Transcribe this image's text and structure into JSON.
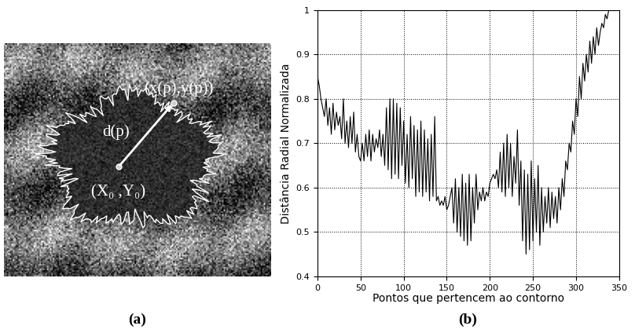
{
  "chart_data": [
    {
      "type": "image",
      "caption": "(a)",
      "annotations": [
        "d(p)",
        "(x(p),y(p))",
        "(X₀ ,Y₀)"
      ]
    },
    {
      "type": "line",
      "caption": "(b)",
      "x_label": "Pontos que pertencem ao contorno",
      "y_label": "Distância Radial Normalizada",
      "x": [
        0,
        2,
        4,
        6,
        8,
        10,
        12,
        14,
        16,
        18,
        20,
        22,
        24,
        26,
        28,
        30,
        32,
        34,
        36,
        38,
        40,
        42,
        44,
        46,
        48,
        50,
        52,
        54,
        56,
        58,
        60,
        62,
        64,
        66,
        68,
        70,
        72,
        74,
        76,
        78,
        80,
        82,
        84,
        86,
        88,
        90,
        92,
        94,
        96,
        98,
        100,
        102,
        104,
        106,
        108,
        110,
        112,
        114,
        116,
        118,
        120,
        122,
        124,
        126,
        128,
        130,
        132,
        134,
        136,
        138,
        140,
        142,
        144,
        146,
        148,
        150,
        152,
        154,
        156,
        158,
        160,
        162,
        164,
        166,
        168,
        170,
        172,
        174,
        176,
        178,
        180,
        182,
        184,
        186,
        188,
        190,
        192,
        194,
        196,
        198,
        200,
        202,
        204,
        206,
        208,
        210,
        212,
        214,
        216,
        218,
        220,
        222,
        224,
        226,
        228,
        230,
        232,
        234,
        236,
        238,
        240,
        242,
        244,
        246,
        248,
        250,
        252,
        254,
        256,
        258,
        260,
        262,
        264,
        266,
        268,
        270,
        272,
        274,
        276,
        278,
        280,
        282,
        284,
        286,
        288,
        290,
        292,
        294,
        296,
        298,
        300,
        302,
        304,
        306,
        308,
        310,
        312,
        314,
        316,
        318,
        320,
        322,
        324,
        326,
        328,
        330,
        332,
        334,
        336,
        338
      ],
      "values": [
        0.85,
        0.83,
        0.8,
        0.78,
        0.76,
        0.8,
        0.74,
        0.78,
        0.72,
        0.79,
        0.73,
        0.77,
        0.74,
        0.76,
        0.71,
        0.8,
        0.7,
        0.75,
        0.69,
        0.76,
        0.7,
        0.77,
        0.68,
        0.72,
        0.67,
        0.66,
        0.7,
        0.66,
        0.72,
        0.67,
        0.73,
        0.66,
        0.72,
        0.68,
        0.71,
        0.69,
        0.73,
        0.67,
        0.72,
        0.65,
        0.78,
        0.64,
        0.8,
        0.62,
        0.8,
        0.63,
        0.79,
        0.62,
        0.78,
        0.65,
        0.75,
        0.61,
        0.72,
        0.6,
        0.76,
        0.62,
        0.74,
        0.58,
        0.73,
        0.59,
        0.75,
        0.58,
        0.73,
        0.59,
        0.71,
        0.57,
        0.72,
        0.58,
        0.76,
        0.57,
        0.58,
        0.56,
        0.57,
        0.56,
        0.58,
        0.55,
        0.56,
        0.58,
        0.6,
        0.52,
        0.62,
        0.5,
        0.6,
        0.49,
        0.63,
        0.48,
        0.61,
        0.47,
        0.63,
        0.48,
        0.6,
        0.52,
        0.63,
        0.55,
        0.59,
        0.57,
        0.6,
        0.57,
        0.59,
        0.58,
        0.61,
        0.62,
        0.63,
        0.62,
        0.64,
        0.6,
        0.68,
        0.59,
        0.7,
        0.58,
        0.72,
        0.6,
        0.7,
        0.58,
        0.67,
        0.61,
        0.73,
        0.56,
        0.66,
        0.48,
        0.64,
        0.45,
        0.63,
        0.46,
        0.66,
        0.48,
        0.62,
        0.5,
        0.65,
        0.47,
        0.6,
        0.5,
        0.58,
        0.52,
        0.6,
        0.51,
        0.59,
        0.53,
        0.58,
        0.52,
        0.6,
        0.55,
        0.62,
        0.58,
        0.66,
        0.64,
        0.7,
        0.68,
        0.75,
        0.72,
        0.8,
        0.76,
        0.85,
        0.8,
        0.88,
        0.84,
        0.9,
        0.86,
        0.93,
        0.88,
        0.94,
        0.9,
        0.96,
        0.92,
        0.95,
        0.97,
        0.96,
        0.99,
        0.98,
        1.0
      ],
      "color": "#000000",
      "line_style": "solid",
      "xlim": [
        0,
        350
      ],
      "xticks": [
        0,
        50,
        100,
        150,
        200,
        250,
        300,
        350
      ],
      "ylim": [
        0.4,
        1
      ],
      "yticks": [
        0.4,
        0.5,
        0.6,
        0.7,
        0.8,
        0.9,
        1
      ],
      "grid": true
    }
  ]
}
